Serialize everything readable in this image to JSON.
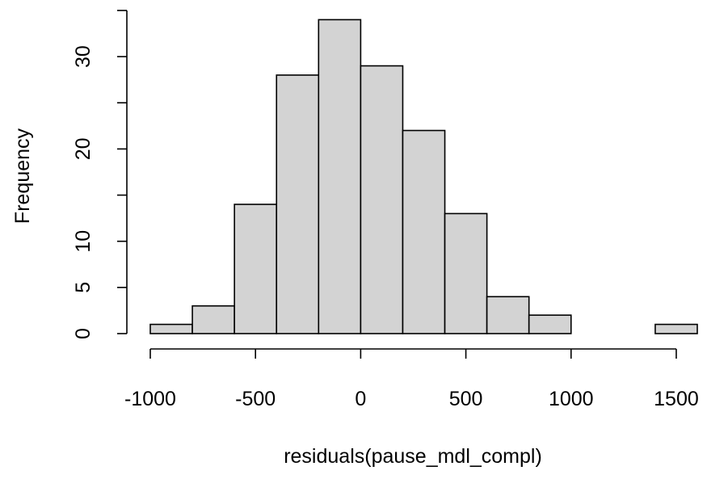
{
  "chart_data": {
    "type": "bar",
    "title": "",
    "xlabel": "residuals(pause_mdl_compl)",
    "ylabel": "Frequency",
    "bins": [
      {
        "from": -1000,
        "to": -800,
        "count": 1
      },
      {
        "from": -800,
        "to": -600,
        "count": 3
      },
      {
        "from": -600,
        "to": -400,
        "count": 14
      },
      {
        "from": -400,
        "to": -200,
        "count": 28
      },
      {
        "from": -200,
        "to": 0,
        "count": 34
      },
      {
        "from": 0,
        "to": 200,
        "count": 29
      },
      {
        "from": 200,
        "to": 400,
        "count": 22
      },
      {
        "from": 400,
        "to": 600,
        "count": 13
      },
      {
        "from": 600,
        "to": 800,
        "count": 4
      },
      {
        "from": 800,
        "to": 1000,
        "count": 2
      },
      {
        "from": 1000,
        "to": 1200,
        "count": 0
      },
      {
        "from": 1200,
        "to": 1400,
        "count": 0
      },
      {
        "from": 1400,
        "to": 1600,
        "count": 1
      }
    ],
    "xlim": [
      -1000,
      1600
    ],
    "ylim": [
      0,
      34
    ],
    "x_ticks": [
      -1000,
      -500,
      0,
      500,
      1000,
      1500
    ],
    "x_tick_labels": [
      "-1000",
      "-500",
      "0",
      "500",
      "1000",
      "1500"
    ],
    "y_ticks": [
      0,
      5,
      10,
      20,
      30
    ],
    "y_tick_labels": [
      "0",
      "5",
      "10",
      "20",
      "30"
    ],
    "y_tick_marks": [
      0,
      5,
      10,
      15,
      20,
      25,
      30,
      35
    ],
    "bar_fill": "#d3d3d3",
    "bar_stroke": "#000000",
    "grid": false,
    "legend": "none"
  }
}
